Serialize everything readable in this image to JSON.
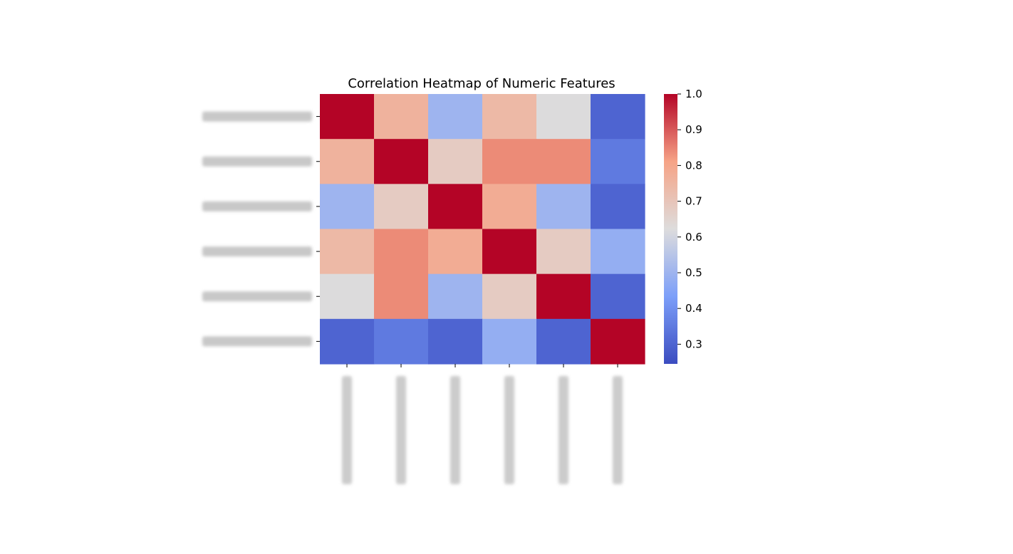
{
  "chart_data": {
    "type": "heatmap",
    "title": "Correlation Heatmap of Numeric Features",
    "row_labels": [
      "",
      "",
      "",
      "",
      "",
      ""
    ],
    "col_labels": [
      "",
      "",
      "",
      "",
      "",
      ""
    ],
    "matrix": [
      [
        1.0,
        0.76,
        0.5,
        0.74,
        0.62,
        0.3
      ],
      [
        0.76,
        1.0,
        0.68,
        0.84,
        0.84,
        0.35
      ],
      [
        0.5,
        0.68,
        1.0,
        0.78,
        0.5,
        0.3
      ],
      [
        0.74,
        0.84,
        0.78,
        1.0,
        0.68,
        0.48
      ],
      [
        0.62,
        0.84,
        0.5,
        0.68,
        1.0,
        0.3
      ],
      [
        0.3,
        0.35,
        0.3,
        0.48,
        0.3,
        1.0
      ]
    ],
    "colormap": "coolwarm",
    "vmin": 0.245,
    "vmax": 1.0,
    "colorbar_ticks": [
      "1.0",
      "0.9",
      "0.8",
      "0.7",
      "0.6",
      "0.5",
      "0.4",
      "0.3"
    ],
    "labels_obscured": true
  }
}
